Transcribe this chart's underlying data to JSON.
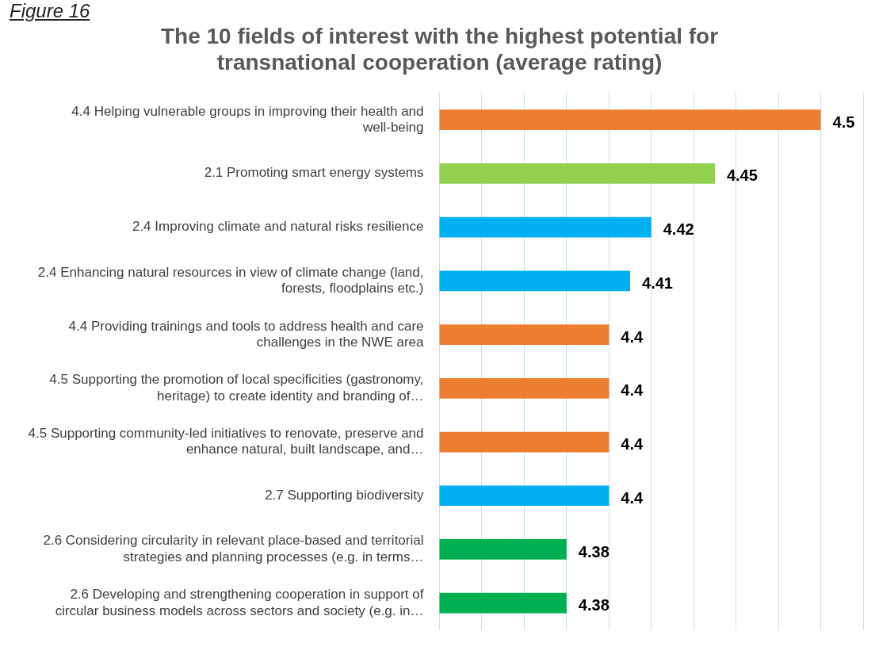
{
  "chart_data": {
    "type": "bar",
    "orientation": "horizontal",
    "title": "The 10 fields of interest with the highest potential for transnational cooperation (average rating)",
    "annotations": [
      "Figure 16"
    ],
    "categories": [
      "4.4 Helping vulnerable groups in improving their health and well-being",
      "2.1 Promoting smart energy systems",
      "2.4 Improving climate and natural risks resilience",
      "2.4 Enhancing natural resources in view of climate change (land, forests, floodplains etc.)",
      "4.4 Providing trainings and tools to address health and care challenges in the NWE area",
      "4.5 Supporting the promotion of local specificities (gastronomy, heritage) to create identity and branding of…",
      "4.5 Supporting community-led initiatives to renovate, preserve and enhance natural, built landscape, and…",
      "2.7 Supporting biodiversity",
      "2.6 Considering circularity in relevant place-based and territorial strategies and planning processes (e.g. in terms…",
      "2.6 Developing and strengthening cooperation in support of circular business models across sectors and society (e.g. in…"
    ],
    "values": [
      4.5,
      4.45,
      4.42,
      4.41,
      4.4,
      4.4,
      4.4,
      4.4,
      4.38,
      4.38
    ],
    "colors": [
      "#ed7d31",
      "#92d050",
      "#00b0f0",
      "#00b0f0",
      "#ed7d31",
      "#ed7d31",
      "#ed7d31",
      "#00b0f0",
      "#00b050",
      "#00b050"
    ],
    "xlim": [
      4.32,
      4.52
    ],
    "xticks": [
      {
        "value": 4.32,
        "label": null
      },
      {
        "value": 4.34,
        "label": null
      },
      {
        "value": 4.36,
        "label": null
      },
      {
        "value": 4.38,
        "label": null
      },
      {
        "value": 4.4,
        "label": null
      },
      {
        "value": 4.42,
        "label": null
      },
      {
        "value": 4.44,
        "label": null
      },
      {
        "value": 4.46,
        "label": null
      },
      {
        "value": 4.48,
        "label": null
      },
      {
        "value": 4.5,
        "label": null
      },
      {
        "value": 4.52,
        "label": null
      }
    ],
    "grid": "x",
    "legend": false,
    "tick_labels": "y",
    "data_labels": true
  }
}
